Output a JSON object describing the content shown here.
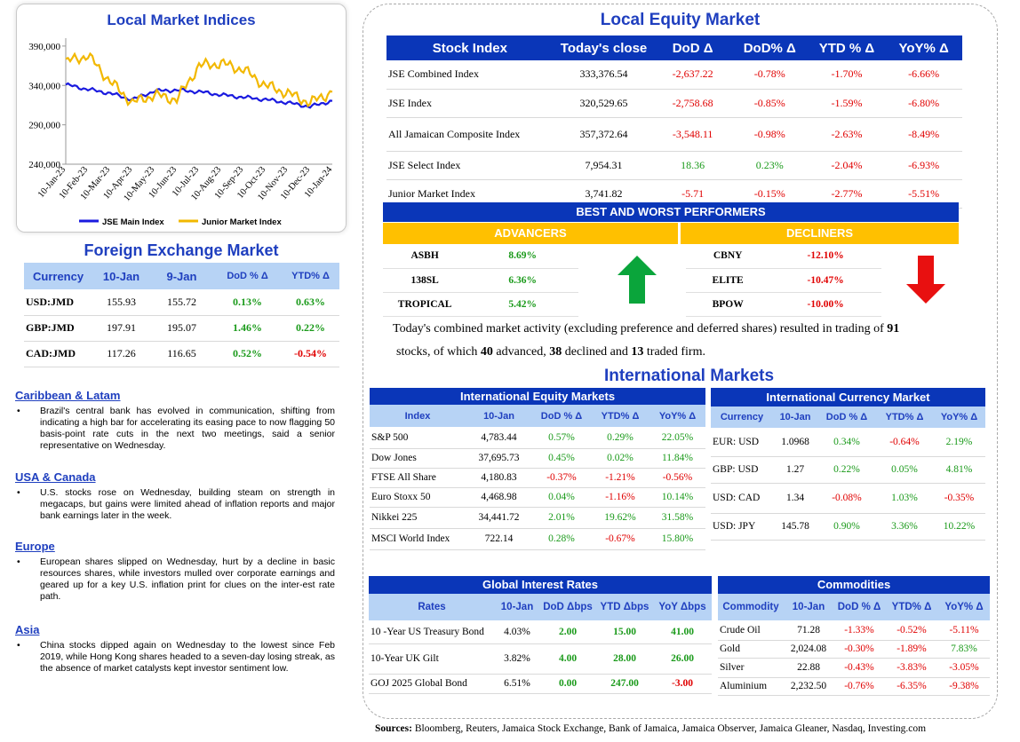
{
  "indices": {
    "title": "Local Market Indices",
    "yticks": [
      "390,000",
      "340,000",
      "290,000",
      "240,000"
    ],
    "xticks": [
      "10-Jan-23",
      "10-Feb-23",
      "10-Mar-23",
      "10-Apr-23",
      "10-May-23",
      "10-Jun-23",
      "10-Jul-23",
      "10-Aug-23",
      "10-Sep-23",
      "10-Oct-23",
      "10-Nov-23",
      "10-Dec-23",
      "10-Jan-24"
    ],
    "legend": [
      {
        "name": "JSE Main Index",
        "color": "#1a1adf"
      },
      {
        "name": "Junior Market Index",
        "color": "#f2b800"
      }
    ]
  },
  "chart_data": {
    "type": "line",
    "title": "Local Market Indices",
    "x": [
      "10-Jan-23",
      "10-Feb-23",
      "10-Mar-23",
      "10-Apr-23",
      "10-May-23",
      "10-Jun-23",
      "10-Jul-23",
      "10-Aug-23",
      "10-Sep-23",
      "10-Oct-23",
      "10-Nov-23",
      "10-Dec-23",
      "10-Jan-24"
    ],
    "ylim": [
      240000,
      400000
    ],
    "series": [
      {
        "name": "JSE Main Index",
        "color": "#1a1adf",
        "values": [
          341000,
          335000,
          330000,
          322000,
          333000,
          334000,
          332000,
          328000,
          325000,
          322000,
          318000,
          313000,
          320500
        ]
      },
      {
        "name": "Junior Market Index",
        "color": "#f2b800",
        "values": [
          370000,
          378000,
          345000,
          318000,
          328000,
          322000,
          365000,
          368000,
          360000,
          340000,
          330000,
          318000,
          332000
        ]
      }
    ]
  },
  "fx": {
    "title": "Foreign Exchange Market",
    "headers": [
      "Currency",
      "10-Jan",
      "9-Jan",
      "DoD % Δ",
      "YTD% Δ"
    ],
    "rows": [
      [
        "USD:JMD",
        "155.93",
        "155.72",
        "0.13%",
        "0.63%"
      ],
      [
        "GBP:JMD",
        "197.91",
        "195.07",
        "1.46%",
        "0.22%"
      ],
      [
        "CAD:JMD",
        "117.26",
        "116.65",
        "0.52%",
        "-0.54%"
      ]
    ]
  },
  "news": [
    {
      "region": "Caribbean & Latam",
      "text": "Brazil's central bank has evolved in communication, shifting from indicating a high bar for accelerating its easing pace to now flagging 50 basis-point rate cuts in the next two meetings, said a senior representative on Wednesday."
    },
    {
      "region": "USA & Canada",
      "text": "U.S. stocks rose on Wednesday, building steam on strength in megacaps, but gains were limited ahead of inflation reports and major bank earnings later in the week."
    },
    {
      "region": "Europe",
      "text": "European shares slipped on Wednesday, hurt by a decline in basic resources shares, while investors mulled over corporate earnings and geared up for a key U.S. inflation print for clues on the inter-est rate path."
    },
    {
      "region": "Asia",
      "text": "China stocks dipped again on Wednesday to the lowest since Feb 2019, while Hong Kong shares headed to a seven-day losing streak, as the absence of market catalysts kept investor sentiment low."
    }
  ],
  "equity": {
    "title": "Local Equity Market",
    "headers": [
      "Stock Index",
      "Today's close",
      "DoD  Δ",
      "DoD% Δ",
      "YTD % Δ",
      "YoY% Δ"
    ],
    "rows": [
      [
        "JSE Combined Index",
        "333,376.54",
        "-2,637.22",
        "-0.78%",
        "-1.70%",
        "-6.66%"
      ],
      [
        "JSE Index",
        "320,529.65",
        "-2,758.68",
        "-0.85%",
        "-1.59%",
        "-6.80%"
      ],
      [
        "All Jamaican Composite Index",
        "357,372.64",
        "-3,548.11",
        "-0.98%",
        "-2.63%",
        "-8.49%"
      ],
      [
        "JSE Select Index",
        "7,954.31",
        "18.36",
        "0.23%",
        "-2.04%",
        "-6.93%"
      ],
      [
        "Junior Market Index",
        "3,741.82",
        "-5.71",
        "-0.15%",
        "-2.77%",
        "-5.51%"
      ]
    ]
  },
  "performers": {
    "title": "BEST AND WORST PERFORMERS",
    "adv_label": "ADVANCERS",
    "dec_label": "DECLINERS",
    "advancers": [
      [
        "ASBH",
        "8.69%"
      ],
      [
        "138SL",
        "6.36%"
      ],
      [
        "TROPICAL",
        "5.42%"
      ]
    ],
    "decliners": [
      [
        "CBNY",
        "-12.10%"
      ],
      [
        "ELITE",
        "-10.47%"
      ],
      [
        "BPOW",
        "-10.00%"
      ]
    ]
  },
  "summary": {
    "p1": "Today's combined market activity (excluding preference and deferred shares) resulted in trading of ",
    "traded": "91",
    "p2": "stocks, of which ",
    "advanced": "40",
    "p3": " advanced, ",
    "declined": "38",
    "p4": " declined and ",
    "firm": "13",
    "p5": " traded firm."
  },
  "intl_title": "International Markets",
  "intl_equity": {
    "title": "International Equity Markets",
    "headers": [
      "Index",
      "10-Jan",
      "DoD % Δ",
      "YTD% Δ",
      "YoY% Δ"
    ],
    "rows": [
      [
        "S&P 500",
        "4,783.44",
        "0.57%",
        "0.29%",
        "22.05%"
      ],
      [
        "Dow Jones",
        "37,695.73",
        "0.45%",
        "0.02%",
        "11.84%"
      ],
      [
        "FTSE All Share",
        "4,180.83",
        "-0.37%",
        "-1.21%",
        "-0.56%"
      ],
      [
        "Euro Stoxx 50",
        "4,468.98",
        "0.04%",
        "-1.16%",
        "10.14%"
      ],
      [
        "Nikkei 225",
        "34,441.72",
        "2.01%",
        "19.62%",
        "31.58%"
      ],
      [
        "MSCI World Index",
        "722.14",
        "0.28%",
        "-0.67%",
        "15.80%"
      ]
    ]
  },
  "intl_currency": {
    "title": "International Currency Market",
    "headers": [
      "Currency",
      "10-Jan",
      "DoD % Δ",
      "YTD% Δ",
      "YoY% Δ"
    ],
    "rows": [
      [
        "EUR: USD",
        "1.0968",
        "0.34%",
        "-0.64%",
        "2.19%"
      ],
      [
        "GBP: USD",
        "1.27",
        "0.22%",
        "0.05%",
        "4.81%"
      ],
      [
        "USD: CAD",
        "1.34",
        "-0.08%",
        "1.03%",
        "-0.35%"
      ],
      [
        "USD: JPY",
        "145.78",
        "0.90%",
        "3.36%",
        "10.22%"
      ]
    ]
  },
  "rates": {
    "title": "Global Interest Rates",
    "headers": [
      "Rates",
      "10-Jan",
      "DoD Δbps",
      "YTD Δbps",
      "YoY Δbps"
    ],
    "rows": [
      [
        "10 -Year US Treasury Bond",
        "4.03%",
        "2.00",
        "15.00",
        "41.00"
      ],
      [
        "10-Year UK Gilt",
        "3.82%",
        "4.00",
        "28.00",
        "26.00"
      ],
      [
        "GOJ 2025 Global Bond",
        "6.51%",
        "0.00",
        "247.00",
        "-3.00"
      ]
    ]
  },
  "commodities": {
    "title": "Commodities",
    "headers": [
      "Commodity",
      "10-Jan",
      "DoD % Δ",
      "YTD% Δ",
      "YoY% Δ"
    ],
    "rows": [
      [
        "Crude Oil",
        "71.28",
        "-1.33%",
        "-0.52%",
        "-5.11%"
      ],
      [
        "Gold",
        "2,024.08",
        "-0.30%",
        "-1.89%",
        "7.83%"
      ],
      [
        "Silver",
        "22.88",
        "-0.43%",
        "-3.83%",
        "-3.05%"
      ],
      [
        "Aluminium",
        "2,232.50",
        "-0.76%",
        "-6.35%",
        "-9.38%"
      ]
    ]
  },
  "sources": {
    "label": "Sources:",
    "text": " Bloomberg, Reuters, Jamaica Stock Exchange, Bank of Jamaica, Jamaica Observer, Jamaica Gleaner, Nasdaq, Investing.com"
  }
}
